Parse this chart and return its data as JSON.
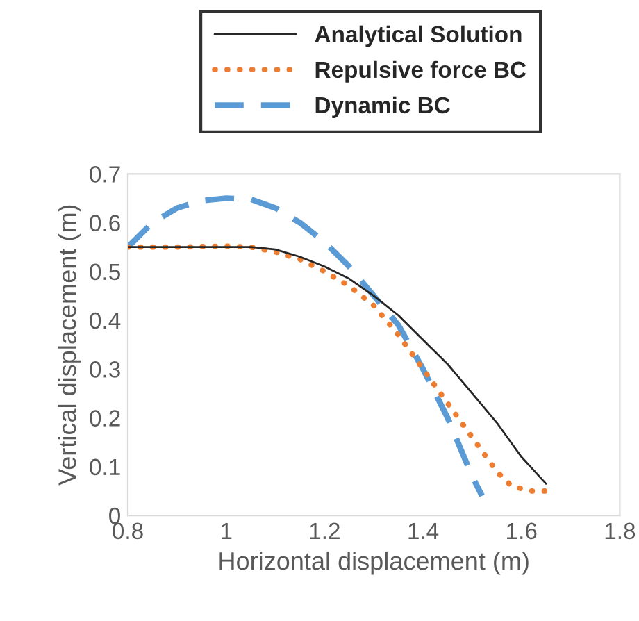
{
  "chart_data": {
    "type": "line",
    "xlabel": "Horizontal displacement (m)",
    "ylabel": "Vertical displacement (m)",
    "xlim": [
      0.8,
      1.8
    ],
    "xticks": [
      0.8,
      1,
      1.2,
      1.4,
      1.6,
      1.8
    ],
    "ylim": [
      0,
      0.7
    ],
    "yticks": [
      0,
      0.1,
      0.2,
      0.3,
      0.4,
      0.5,
      0.6,
      0.7
    ],
    "grid": false,
    "legend": "top",
    "marker": "none",
    "series": [
      {
        "name": "Analytical Solution",
        "color": "#262626",
        "line_style": "solid",
        "x": [
          0.8,
          0.9,
          1.0,
          1.05,
          1.1,
          1.15,
          1.2,
          1.25,
          1.3,
          1.35,
          1.4,
          1.45,
          1.5,
          1.55,
          1.6,
          1.65
        ],
        "values": [
          0.55,
          0.55,
          0.55,
          0.55,
          0.545,
          0.53,
          0.51,
          0.485,
          0.45,
          0.41,
          0.36,
          0.31,
          0.25,
          0.19,
          0.12,
          0.065
        ]
      },
      {
        "name": "Repulsive force BC",
        "color": "#ed7d31",
        "line_style": "dotted",
        "x": [
          0.8,
          0.9,
          1.0,
          1.05,
          1.1,
          1.15,
          1.2,
          1.25,
          1.3,
          1.35,
          1.4,
          1.45,
          1.5,
          1.55,
          1.58,
          1.62,
          1.65
        ],
        "values": [
          0.55,
          0.55,
          0.552,
          0.55,
          0.54,
          0.525,
          0.5,
          0.47,
          0.43,
          0.37,
          0.3,
          0.23,
          0.16,
          0.09,
          0.06,
          0.05,
          0.05
        ]
      },
      {
        "name": "Dynamic BC",
        "color": "#5b9bd5",
        "line_style": "dashed",
        "x": [
          0.8,
          0.85,
          0.9,
          0.95,
          1.0,
          1.05,
          1.1,
          1.15,
          1.2,
          1.25,
          1.3,
          1.35,
          1.4,
          1.45,
          1.5,
          1.52
        ],
        "values": [
          0.55,
          0.6,
          0.63,
          0.645,
          0.65,
          0.648,
          0.63,
          0.6,
          0.56,
          0.51,
          0.45,
          0.39,
          0.3,
          0.2,
          0.08,
          0.04
        ]
      }
    ]
  }
}
